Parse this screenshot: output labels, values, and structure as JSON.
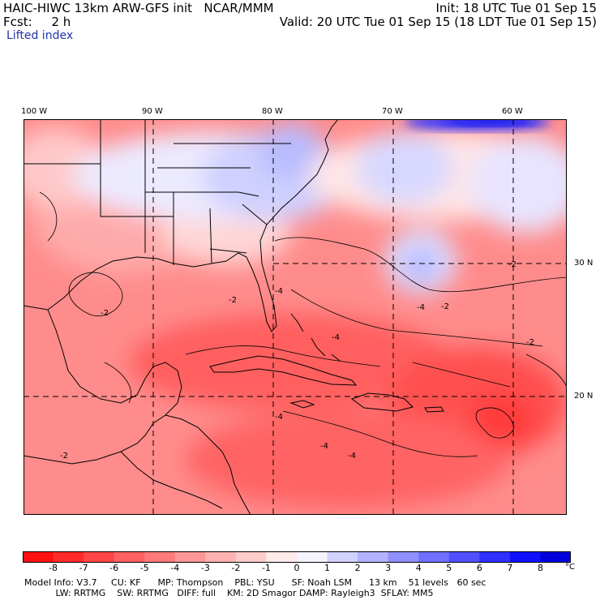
{
  "header": {
    "title_left": "HAIC-HIWC 13km ARW-GFS init   NCAR/MMM",
    "fcst": "Fcst:     2 h",
    "init": "Init: 18 UTC Tue 01 Sep 15",
    "valid": "Valid: 20 UTC Tue 01 Sep 15 (18 LDT Tue 01 Sep 15)",
    "field": "Lifted index"
  },
  "map": {
    "longitude_labels": [
      "100 W",
      "90 W",
      "80 W",
      "70 W",
      "60 W"
    ],
    "latitude_labels": [
      "30 N",
      "20 N"
    ],
    "contour_labels": [
      "-2",
      "-2",
      "-2",
      "-4",
      "-4",
      "-4",
      "-2",
      "-2",
      "-4",
      "-4",
      "-4",
      "-2"
    ]
  },
  "colorbar": {
    "levels": [
      "-8",
      "-7",
      "-6",
      "-5",
      "-4",
      "-3",
      "-2",
      "-1",
      "0",
      "1",
      "2",
      "3",
      "4",
      "5",
      "6",
      "7",
      "8"
    ],
    "unit": "°C",
    "colors": [
      "#ff1010",
      "#ff2a2a",
      "#ff4646",
      "#ff6060",
      "#ff7a7a",
      "#ff9696",
      "#ffb2b2",
      "#ffcccc",
      "#ffeaea",
      "#f4f4ff",
      "#d2d2ff",
      "#b2b2ff",
      "#9090ff",
      "#7070ff",
      "#5050ff",
      "#3030ff",
      "#1010ff",
      "#0000dd"
    ]
  },
  "footer": {
    "line1": "Model Info: V3.7     CU: KF      MP: Thompson    PBL: YSU      SF: Noah LSM      13 km    51 levels   60 sec",
    "line2": "           LW: RRTMG    SW: RRTMG   DIFF: full    KM: 2D Smagor DAMP: Rayleigh3  SFLAY: MM5"
  }
}
